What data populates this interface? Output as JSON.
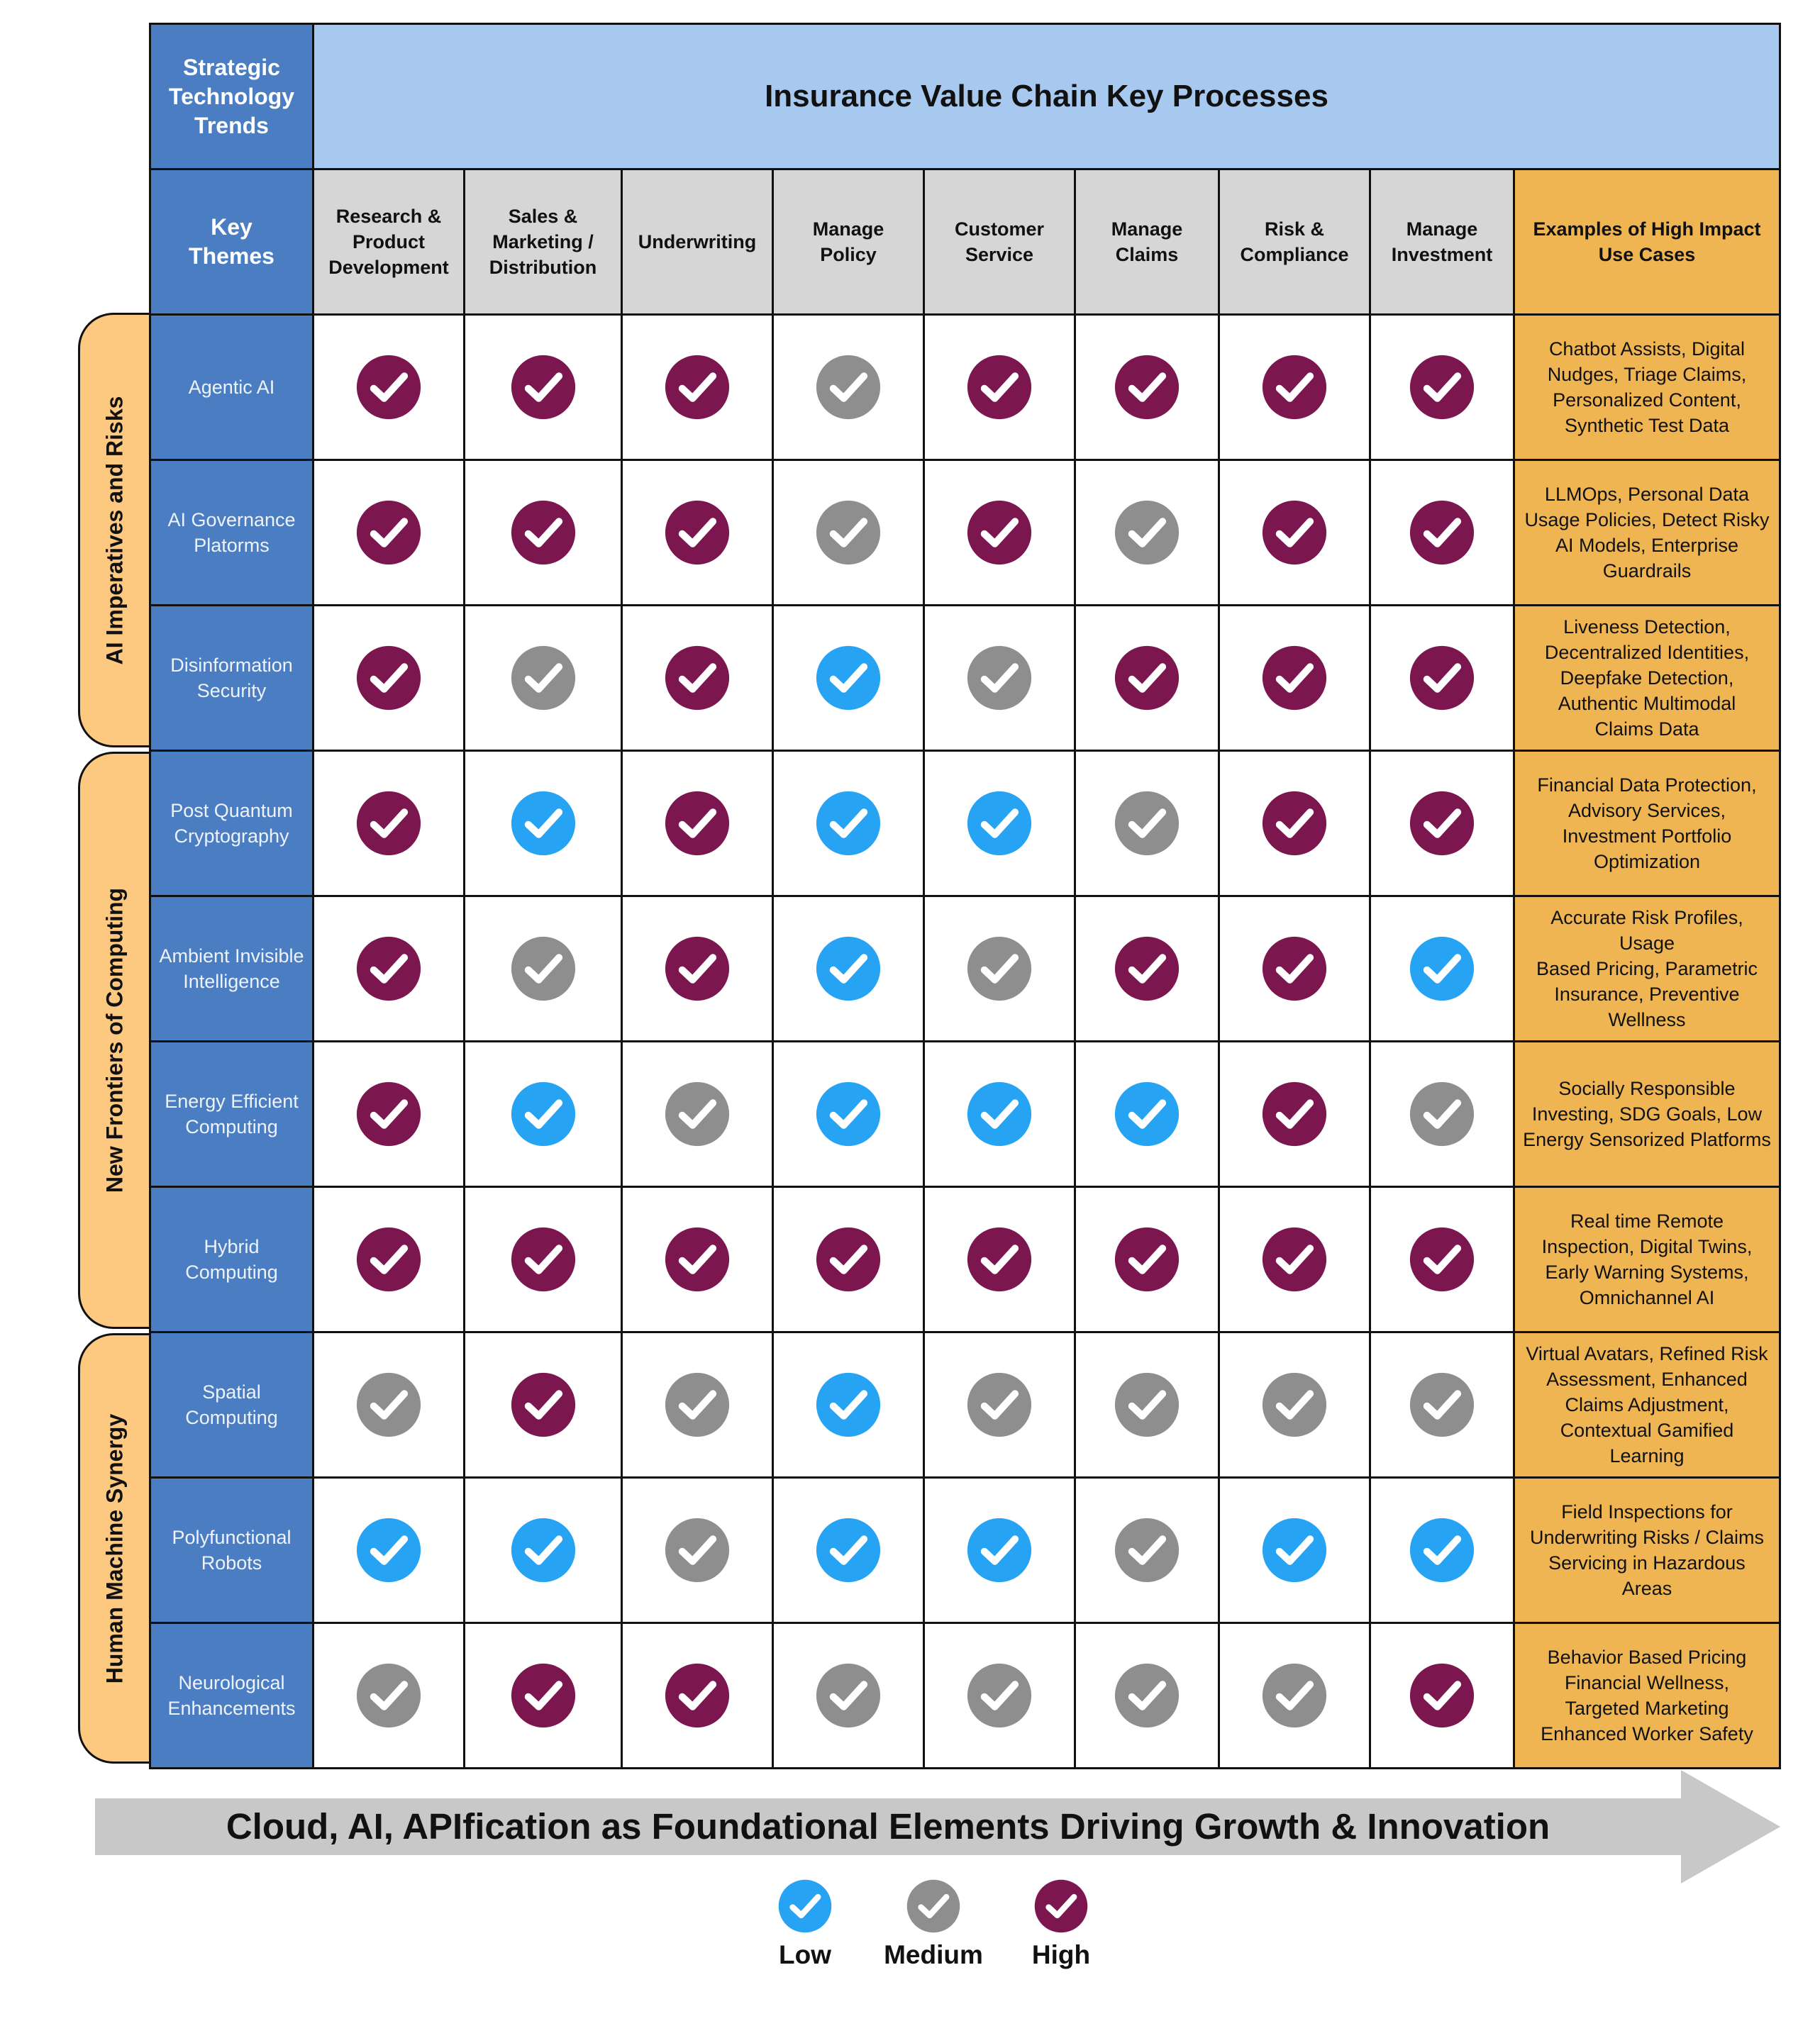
{
  "header": {
    "corner": "Strategic\nTechnology\nTrends",
    "banner": "Insurance Value Chain Key Processes",
    "themes_label": "Key\nThemes",
    "columns": [
      "Research &\nProduct\nDevelopment",
      "Sales &\nMarketing /\nDistribution",
      "Underwriting",
      "Manage\nPolicy",
      "Customer\nService",
      "Manage\nClaims",
      "Risk &\nCompliance",
      "Manage\nInvestment"
    ],
    "use_cases_label": "Examples of High Impact\nUse Cases"
  },
  "groups": [
    {
      "label": "AI Imperatives and Risks"
    },
    {
      "label": "New Frontiers of Computing"
    },
    {
      "label": "Human Machine Synergy"
    }
  ],
  "rows": [
    {
      "theme": "Agentic AI",
      "ratings": [
        "high",
        "high",
        "high",
        "medium",
        "high",
        "high",
        "high",
        "high"
      ],
      "use_cases": "Chatbot Assists, Digital\nNudges, Triage Claims,\nPersonalized Content,\nSynthetic Test Data"
    },
    {
      "theme": "AI Governance\nPlatorms",
      "ratings": [
        "high",
        "high",
        "high",
        "medium",
        "high",
        "medium",
        "high",
        "high"
      ],
      "use_cases": "LLMOps, Personal Data\nUsage Policies, Detect Risky\nAI Models, Enterprise\nGuardrails"
    },
    {
      "theme": "Disinformation\nSecurity",
      "ratings": [
        "high",
        "medium",
        "high",
        "low",
        "medium",
        "high",
        "high",
        "high"
      ],
      "use_cases": "Liveness Detection,\nDecentralized Identities,\nDeepfake Detection,\nAuthentic Multimodal\nClaims Data"
    },
    {
      "theme": "Post Quantum\nCryptography",
      "ratings": [
        "high",
        "low",
        "high",
        "low",
        "low",
        "medium",
        "high",
        "high"
      ],
      "use_cases": "Financial Data Protection,\nAdvisory Services,\nInvestment Portfolio\nOptimization"
    },
    {
      "theme": "Ambient Invisible\nIntelligence",
      "ratings": [
        "high",
        "medium",
        "high",
        "low",
        "medium",
        "high",
        "high",
        "low"
      ],
      "use_cases": "Accurate Risk Profiles, Usage\nBased Pricing, Parametric\nInsurance, Preventive\nWellness"
    },
    {
      "theme": "Energy Efficient\nComputing",
      "ratings": [
        "high",
        "low",
        "medium",
        "low",
        "low",
        "low",
        "high",
        "medium"
      ],
      "use_cases": "Socially Responsible\nInvesting, SDG Goals, Low\nEnergy Sensorized Platforms"
    },
    {
      "theme": "Hybrid\nComputing",
      "ratings": [
        "high",
        "high",
        "high",
        "high",
        "high",
        "high",
        "high",
        "high"
      ],
      "use_cases": "Real time Remote\nInspection, Digital Twins,\nEarly Warning Systems,\nOmnichannel AI"
    },
    {
      "theme": "Spatial\nComputing",
      "ratings": [
        "medium",
        "high",
        "medium",
        "low",
        "medium",
        "medium",
        "medium",
        "medium"
      ],
      "use_cases": "Virtual Avatars, Refined Risk\nAssessment, Enhanced\nClaims Adjustment,\nContextual Gamified\nLearning"
    },
    {
      "theme": "Polyfunctional\nRobots",
      "ratings": [
        "low",
        "low",
        "medium",
        "low",
        "low",
        "medium",
        "low",
        "low"
      ],
      "use_cases": "Field Inspections for\nUnderwriting Risks / Claims\nServicing in Hazardous Areas"
    },
    {
      "theme": "Neurological\nEnhancements",
      "ratings": [
        "medium",
        "high",
        "high",
        "medium",
        "medium",
        "medium",
        "medium",
        "high"
      ],
      "use_cases": "Behavior Based Pricing\nFinancial Wellness,\nTargeted Marketing\nEnhanced Worker Safety"
    }
  ],
  "arrow": {
    "label": "Cloud, AI, APIfication as Foundational Elements Driving Growth & Innovation"
  },
  "legend": [
    {
      "key": "low",
      "label": "Low",
      "color": "#27a3f3"
    },
    {
      "key": "medium",
      "label": "Medium",
      "color": "#8e8e8e"
    },
    {
      "key": "high",
      "label": "High",
      "color": "#7b164f"
    }
  ],
  "colors": {
    "theme_blue": "#4a7dc1",
    "banner_blue": "#a8c9ef",
    "header_gray": "#d6d6d6",
    "use_case_orange": "#efb552",
    "group_tab": "#fdc981",
    "arrow_gray": "#c8c8c8"
  },
  "icons": {
    "rating": "check-circle-icon",
    "arrow": "right-arrow-icon"
  }
}
